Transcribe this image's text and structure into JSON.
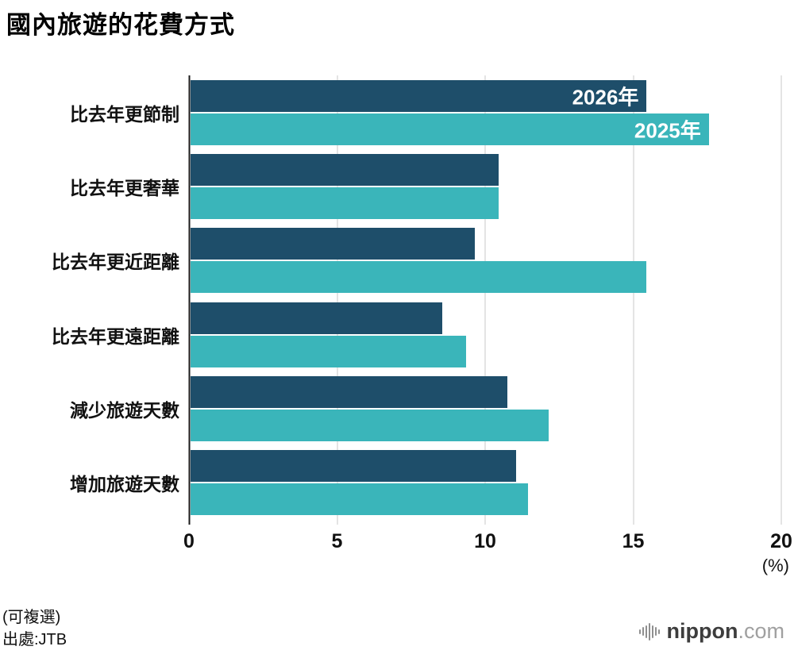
{
  "title": "國內旅遊的花費方式",
  "chart_data": {
    "type": "bar",
    "orientation": "horizontal",
    "title": "國內旅遊的花費方式",
    "categories": [
      "比去年更節制",
      "比去年更奢華",
      "比去年更近距離",
      "比去年更遠距離",
      "減少旅遊天數",
      "增加旅遊天數"
    ],
    "series": [
      {
        "name": "2026年",
        "color": "#1e4e6a",
        "values": [
          15.4,
          10.4,
          9.6,
          8.5,
          10.7,
          11.0
        ]
      },
      {
        "name": "2025年",
        "color": "#3ab5ba",
        "values": [
          17.5,
          10.4,
          15.4,
          9.3,
          12.1,
          11.4
        ]
      }
    ],
    "xlim": [
      0,
      20
    ],
    "xticks": [
      0,
      5,
      10,
      15,
      20
    ],
    "unit_label": "(%)",
    "grid": true,
    "legend_position": "inside-first-bars"
  },
  "footer": {
    "note": "(可複選)",
    "source": "出處:JTB"
  },
  "logo": {
    "name": "nippon",
    "domain": ".com"
  }
}
